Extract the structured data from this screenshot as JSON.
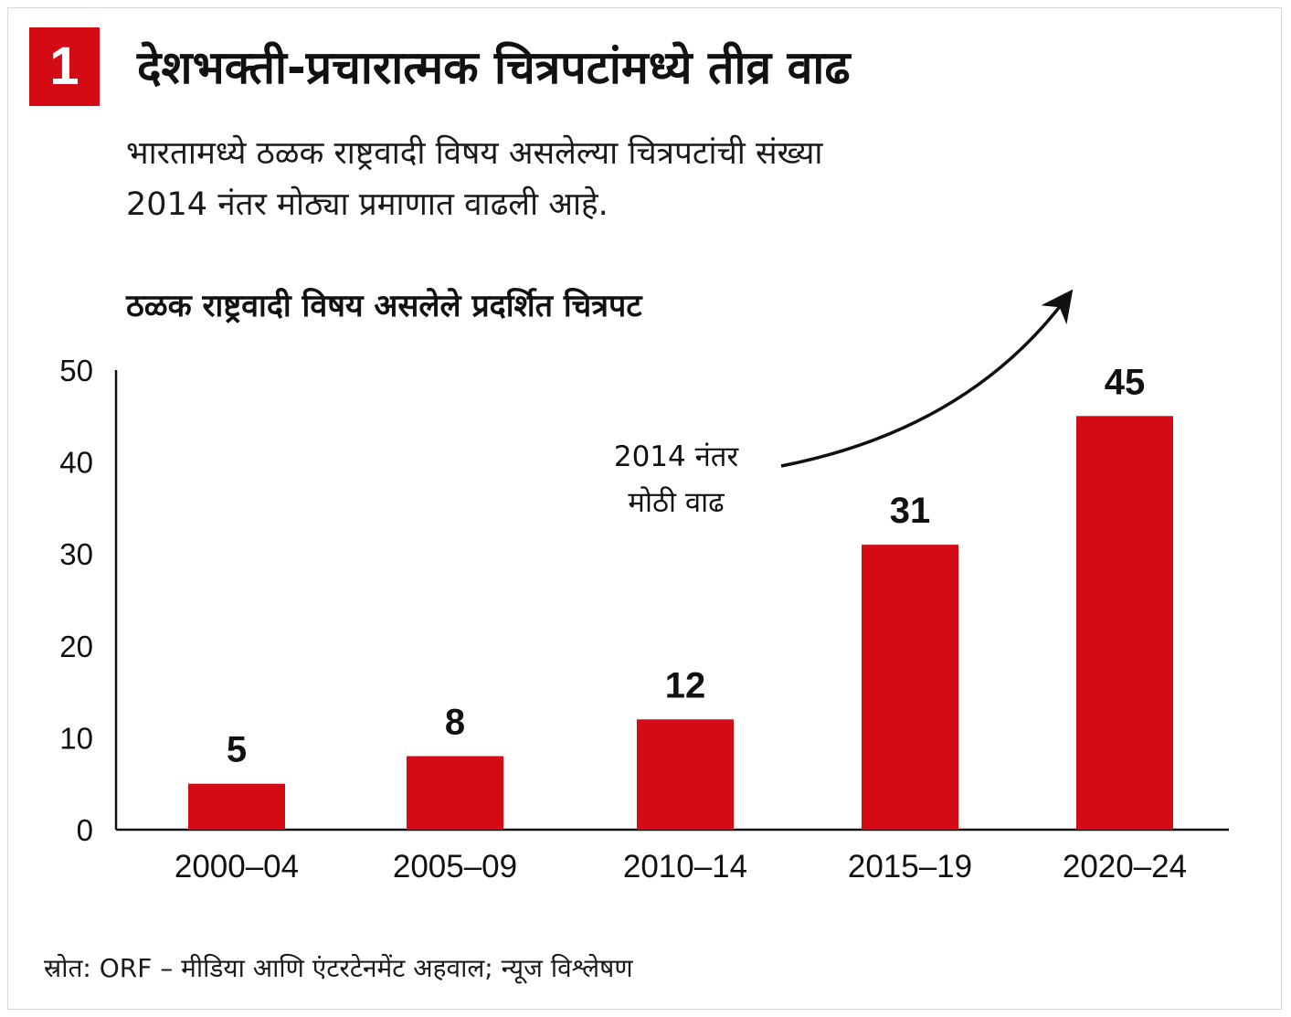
{
  "header": {
    "badge": "1",
    "title": "देशभक्ती-प्रचारात्मक चित्रपटांमध्ये तीव्र वाढ",
    "subtitle_line1": "भारतामध्ये ठळक राष्ट्रवादी विषय असलेल्या चित्रपटांची संख्या",
    "subtitle_line2": "2014 नंतर मोठ्या प्रमाणात वाढली आहे."
  },
  "chart_data": {
    "type": "bar",
    "title": "ठळक राष्ट्रवादी विषय असलेले प्रदर्शित चित्रपट",
    "xlabel": "",
    "ylabel": "",
    "categories": [
      "2000–04",
      "2005–09",
      "2010–14",
      "2015–19",
      "2020–24"
    ],
    "values": [
      5,
      8,
      12,
      31,
      45
    ],
    "value_labels": [
      "5",
      "8",
      "12",
      "31",
      "45"
    ],
    "ylim": [
      0,
      50
    ],
    "yticks": [
      0,
      10,
      20,
      30,
      40,
      50
    ],
    "ytick_labels": [
      "0",
      "10",
      "20",
      "30",
      "40",
      "50"
    ],
    "grid": false,
    "bar_color": "#d40a14",
    "annotation": {
      "line1": "2014 नंतर",
      "line2": "मोठी वाढ",
      "arrow": "curved-up-right"
    }
  },
  "footer": {
    "source": "स्रोत: ORF – मीडिया आणि एंटरटेनमेंट अहवाल; न्यूज विश्लेषण"
  },
  "colors": {
    "accent": "#d40a14"
  }
}
